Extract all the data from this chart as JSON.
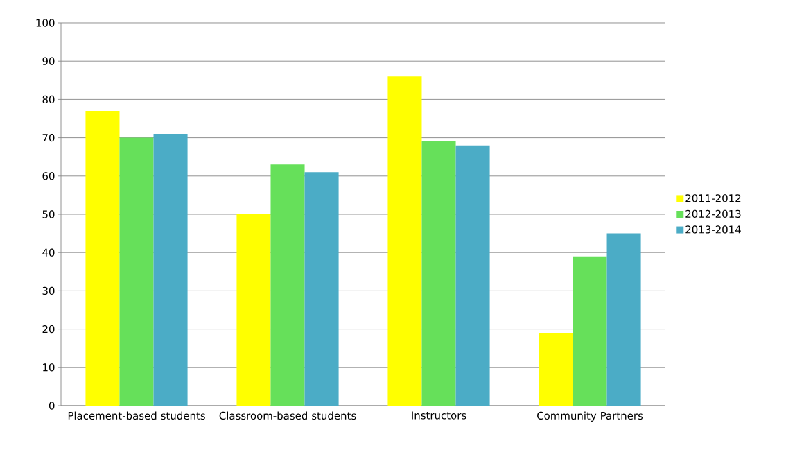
{
  "chart_data": {
    "type": "bar",
    "categories": [
      "Placement-based students",
      "Classroom-based students",
      "Instructors",
      "Community Partners"
    ],
    "series": [
      {
        "name": "2011-2012",
        "color": "#ffff00",
        "values": [
          77,
          50,
          86,
          19
        ]
      },
      {
        "name": "2012-2013",
        "color": "#66e05a",
        "values": [
          70,
          63,
          69,
          39
        ]
      },
      {
        "name": "2013-2014",
        "color": "#4bacc6",
        "values": [
          71,
          61,
          68,
          45
        ]
      }
    ],
    "ylim": [
      0,
      100
    ],
    "yticks": [
      0,
      10,
      20,
      30,
      40,
      50,
      60,
      70,
      80,
      90,
      100
    ],
    "grid": "y",
    "legend": "right"
  }
}
